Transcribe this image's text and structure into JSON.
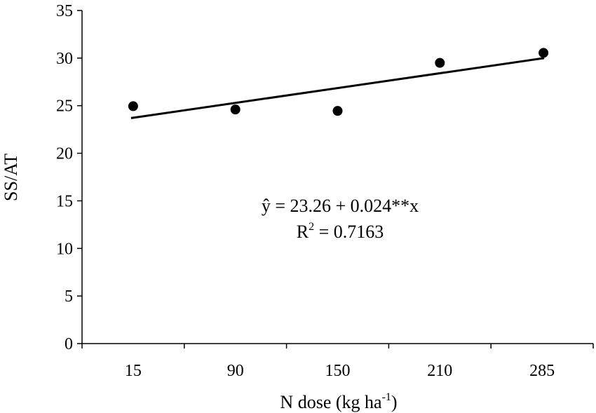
{
  "chart_data": {
    "type": "scatter",
    "categories": [
      "15",
      "90",
      "150",
      "210",
      "285"
    ],
    "x": [
      "15",
      "90",
      "150",
      "210",
      "285"
    ],
    "values": [
      24.95,
      24.6,
      24.45,
      29.5,
      30.55
    ],
    "xlabel_main": "N dose (kg ha",
    "xlabel_sup": "-1",
    "xlabel_tail": ")",
    "ylabel": "SS/AT",
    "ylim": [
      0,
      35
    ],
    "yticks": [
      0,
      5,
      10,
      15,
      20,
      25,
      30,
      35
    ],
    "ytick_labels": [
      "0",
      "5",
      "10",
      "15",
      "20",
      "25",
      "30",
      "35"
    ],
    "trendline": {
      "start": 23.7,
      "end": 30.0
    },
    "equation": "ŷ = 23.26 + 0.024**x",
    "r2_prefix": "R",
    "r2_sup": "2",
    "r2_value": " = 0.7163",
    "grid": false,
    "colors": {
      "marker": "#000000",
      "line": "#000000",
      "axis": "#000000"
    }
  }
}
